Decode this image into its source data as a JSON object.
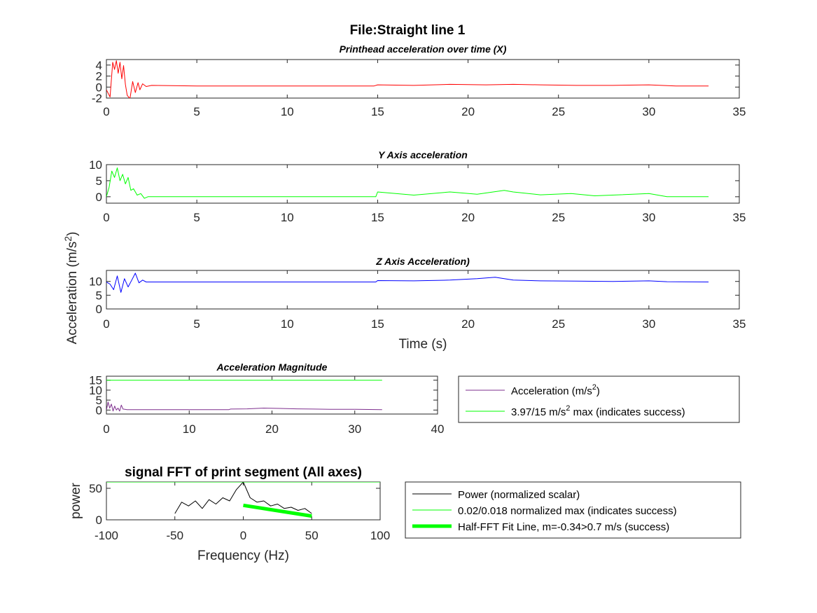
{
  "figure_title": "File:Straight line 1",
  "shared_ylabel": "Acceleration (m/s²)",
  "chart_data": [
    {
      "type": "line",
      "title": "Printhead acceleration over time (X)",
      "xlabel": "",
      "ylabel": "",
      "xlim": [
        0,
        35
      ],
      "ylim": [
        -2,
        5
      ],
      "xticks": [
        0,
        5,
        10,
        15,
        20,
        25,
        30,
        35
      ],
      "yticks": [
        -2,
        0,
        2,
        4
      ],
      "series": [
        {
          "color": "#ff0000",
          "x": [
            0,
            0.2,
            0.35,
            0.45,
            0.55,
            0.65,
            0.75,
            0.85,
            0.95,
            1.05,
            1.15,
            1.3,
            1.45,
            1.6,
            1.75,
            1.85,
            2.0,
            2.2,
            2.5,
            5,
            10,
            14.8,
            15,
            17,
            19,
            21,
            22.5,
            24,
            26,
            28,
            30,
            31.5,
            33.3
          ],
          "y": [
            -0.5,
            -1.8,
            4.5,
            3.2,
            4.8,
            2.5,
            4.5,
            1.5,
            3.9,
            0.5,
            -1.5,
            -2.1,
            1.0,
            -1.0,
            0.8,
            -0.5,
            0.6,
            0.1,
            0.3,
            0.2,
            0.2,
            0.2,
            0.4,
            0.3,
            0.5,
            0.4,
            0.5,
            0.4,
            0.3,
            0.3,
            0.4,
            0.2,
            0.2
          ]
        }
      ]
    },
    {
      "type": "line",
      "title": "Y Axis acceleration",
      "xlabel": "",
      "ylabel": "",
      "xlim": [
        0,
        35
      ],
      "ylim": [
        -2,
        10
      ],
      "xticks": [
        0,
        5,
        10,
        15,
        20,
        25,
        30,
        35
      ],
      "yticks": [
        0,
        5,
        10
      ],
      "series": [
        {
          "color": "#00ff00",
          "x": [
            0,
            0.15,
            0.3,
            0.45,
            0.6,
            0.75,
            0.9,
            1.05,
            1.2,
            1.35,
            1.5,
            1.7,
            1.9,
            2.1,
            2.3,
            5,
            10,
            14.9,
            15,
            17,
            19,
            20.5,
            22,
            22.5,
            24,
            25.7,
            27,
            30,
            31,
            33.3
          ],
          "y": [
            0,
            3,
            8,
            6,
            9,
            5,
            7,
            4,
            6,
            2,
            2.5,
            0.5,
            1,
            -0.5,
            0,
            0,
            0,
            0,
            1.5,
            0.5,
            1.5,
            0.8,
            2,
            1.5,
            0.6,
            1,
            0.3,
            1,
            0,
            0
          ]
        }
      ]
    },
    {
      "type": "line",
      "title": "Z Axis Acceleration)",
      "xlabel": "Time (s)",
      "ylabel": "",
      "xlim": [
        0,
        35
      ],
      "ylim": [
        0,
        14
      ],
      "xticks": [
        0,
        5,
        10,
        15,
        20,
        25,
        30,
        35
      ],
      "yticks": [
        0,
        5,
        10
      ],
      "series": [
        {
          "color": "#0000ff",
          "x": [
            0,
            0.2,
            0.4,
            0.6,
            0.8,
            1.0,
            1.2,
            1.4,
            1.6,
            1.8,
            2.0,
            2.2,
            2.5,
            5,
            10,
            14.9,
            15,
            17,
            19,
            20.5,
            21.5,
            22.5,
            24,
            26,
            28,
            30,
            31,
            33.3
          ],
          "y": [
            9.8,
            9,
            7,
            12,
            6,
            11,
            8,
            10.5,
            13,
            9.5,
            10.5,
            9.8,
            9.8,
            9.8,
            9.8,
            9.8,
            10.3,
            10.2,
            10.5,
            11,
            11.5,
            10.5,
            10.2,
            10.1,
            10,
            10.2,
            9.9,
            9.8
          ]
        }
      ]
    },
    {
      "type": "line",
      "title": "Acceleration Magnitude",
      "xlabel": "",
      "ylabel": "",
      "xlim": [
        0,
        40
      ],
      "ylim": [
        -2,
        17
      ],
      "xticks": [
        0,
        10,
        20,
        30,
        40
      ],
      "yticks": [
        0,
        5,
        10,
        15
      ],
      "series": [
        {
          "name": "Acceleration (m/s²)",
          "color": "#7e2f8e",
          "x": [
            0,
            0.2,
            0.4,
            0.6,
            0.8,
            1.0,
            1.2,
            1.4,
            1.6,
            1.8,
            2.0,
            2.5,
            5,
            10,
            14.8,
            15,
            17,
            19,
            21,
            23,
            25,
            27,
            30,
            33.3
          ],
          "y": [
            0,
            4,
            1,
            3,
            -0.5,
            2,
            0,
            1,
            -0.5,
            2.5,
            0.5,
            0.2,
            0.2,
            0.2,
            0.2,
            0.5,
            0.6,
            1,
            0.8,
            0.6,
            0.5,
            0.4,
            0.4,
            0.2
          ]
        },
        {
          "name": "3.97/15 m/s² max (indicates success)",
          "color": "#00ff00",
          "x": [
            0,
            33.3
          ],
          "y": [
            15,
            15
          ]
        }
      ]
    },
    {
      "type": "line",
      "title": "signal FFT of print segment (All axes)",
      "xlabel": "Frequency (Hz)",
      "ylabel": "power",
      "xlim": [
        -100,
        100
      ],
      "ylim": [
        0,
        60
      ],
      "xticks": [
        -100,
        -50,
        0,
        50,
        100
      ],
      "yticks": [
        0,
        50
      ],
      "series": [
        {
          "name": "Power (normalized scalar)",
          "color": "#000000",
          "x": [
            -50,
            -45,
            -40,
            -35,
            -30,
            -25,
            -20,
            -15,
            -10,
            -5,
            0,
            5,
            10,
            15,
            20,
            25,
            30,
            35,
            40,
            45,
            50
          ],
          "y": [
            10,
            28,
            22,
            30,
            18,
            32,
            25,
            35,
            30,
            48,
            60,
            35,
            28,
            30,
            22,
            25,
            18,
            20,
            15,
            18,
            10
          ]
        },
        {
          "name": "0.02/0.018 normalized max (indicates success)",
          "color": "#00ff00",
          "x": [
            -100,
            100
          ],
          "y": [
            60,
            60
          ]
        },
        {
          "name": "Half-FFT Fit Line, m=-0.34>0.7 m/s (success)",
          "color": "#00ff00",
          "x": [
            0,
            50
          ],
          "y": [
            23,
            6
          ]
        }
      ]
    }
  ]
}
